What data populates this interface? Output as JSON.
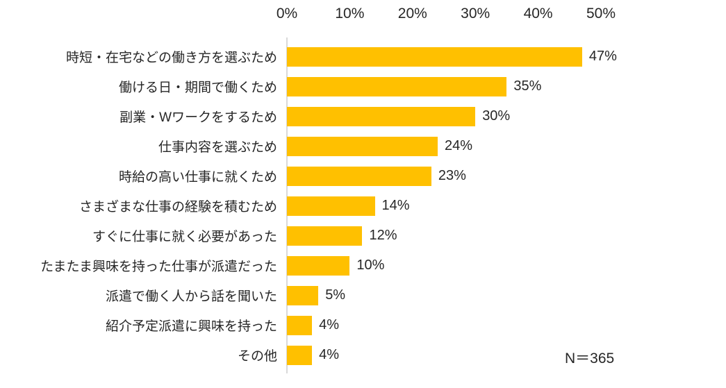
{
  "chart_data": {
    "type": "bar",
    "orientation": "horizontal",
    "categories": [
      "時短・在宅などの働き方を選ぶため",
      "働ける日・期間で働くため",
      "副業・Wワークをするため",
      "仕事内容を選ぶため",
      "時給の高い仕事に就くため",
      "さまざまな仕事の経験を積むため",
      "すぐに仕事に就く必要があった",
      "たまたま興味を持った仕事が派遣だった",
      "派遣で働く人から話を聞いた",
      "紹介予定派遣に興味を持った",
      "その他"
    ],
    "values": [
      47,
      35,
      30,
      24,
      23,
      14,
      12,
      10,
      5,
      4,
      4
    ],
    "value_labels": [
      "47%",
      "35%",
      "30%",
      "24%",
      "23%",
      "14%",
      "12%",
      "10%",
      "5%",
      "4%",
      "4%"
    ],
    "x_axis": {
      "position": "top",
      "min": 0,
      "max": 50,
      "ticks": [
        "0%",
        "10%",
        "20%",
        "30%",
        "40%",
        "50%"
      ]
    },
    "annotation": "N＝365",
    "bar_color": "#FFC000",
    "axis_line_color": "#D9D9D9",
    "text_color": "#262626",
    "grid": false,
    "legend": false
  }
}
